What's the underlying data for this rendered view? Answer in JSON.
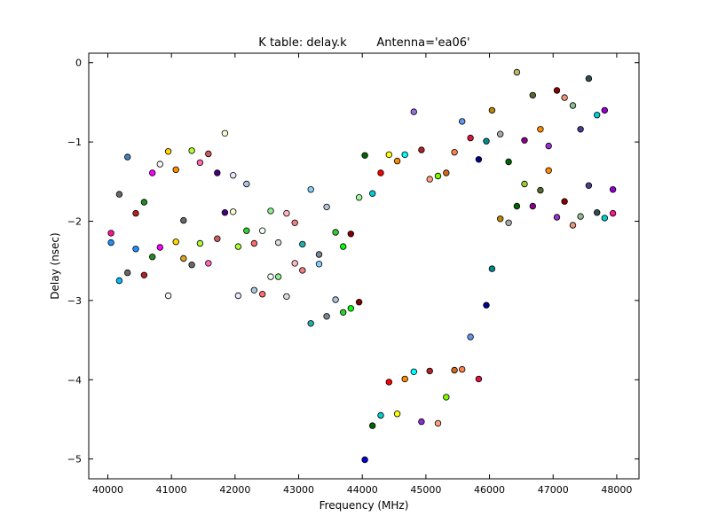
{
  "chart_data": {
    "type": "scatter",
    "title": "K table: delay.k",
    "subtitle": "Antenna='ea06'",
    "xlabel": "Frequency (MHz)",
    "ylabel": "Delay (nsec)",
    "xlim": [
      39700,
      48350
    ],
    "ylim": [
      -5.25,
      0.12
    ],
    "xticks": [
      40000,
      41000,
      42000,
      43000,
      44000,
      45000,
      46000,
      47000,
      48000
    ],
    "yticks": [
      0,
      -1,
      -2,
      -3,
      -4,
      -5
    ],
    "xtick_labels": [
      "40000",
      "41000",
      "42000",
      "43000",
      "44000",
      "45000",
      "46000",
      "47000",
      "48000"
    ],
    "ytick_labels": [
      "0",
      "−1",
      "−2",
      "−3",
      "−4",
      "−5"
    ],
    "grid": false,
    "points": [
      {
        "x": 40050,
        "y": -2.15,
        "color": "#ff1493"
      },
      {
        "x": 40050,
        "y": -2.27,
        "color": "#1e90ff"
      },
      {
        "x": 40180,
        "y": -1.66,
        "color": "#696969"
      },
      {
        "x": 40180,
        "y": -2.75,
        "color": "#00bfff"
      },
      {
        "x": 40310,
        "y": -1.19,
        "color": "#4682b4"
      },
      {
        "x": 40310,
        "y": -2.65,
        "color": "#696969"
      },
      {
        "x": 40440,
        "y": -1.9,
        "color": "#b22222"
      },
      {
        "x": 40440,
        "y": -2.35,
        "color": "#1e90ff"
      },
      {
        "x": 40570,
        "y": -1.76,
        "color": "#228b22"
      },
      {
        "x": 40570,
        "y": -2.68,
        "color": "#b22222"
      },
      {
        "x": 40700,
        "y": -1.39,
        "color": "#ff00ff"
      },
      {
        "x": 40700,
        "y": -2.45,
        "color": "#228b22"
      },
      {
        "x": 40820,
        "y": -1.28,
        "color": "#f5f5f5"
      },
      {
        "x": 40820,
        "y": -2.33,
        "color": "#ff00ff"
      },
      {
        "x": 40950,
        "y": -1.12,
        "color": "#ffd700"
      },
      {
        "x": 40950,
        "y": -2.94,
        "color": "#f5f5f5"
      },
      {
        "x": 41070,
        "y": -1.35,
        "color": "#ff8c00"
      },
      {
        "x": 41070,
        "y": -2.26,
        "color": "#ffd700"
      },
      {
        "x": 41190,
        "y": -1.99,
        "color": "#696969"
      },
      {
        "x": 41190,
        "y": -2.47,
        "color": "#daa520"
      },
      {
        "x": 41320,
        "y": -1.11,
        "color": "#adff2f"
      },
      {
        "x": 41320,
        "y": -2.55,
        "color": "#696969"
      },
      {
        "x": 41450,
        "y": -1.26,
        "color": "#ff69b4"
      },
      {
        "x": 41450,
        "y": -2.28,
        "color": "#adff2f"
      },
      {
        "x": 41580,
        "y": -1.15,
        "color": "#cd5c5c"
      },
      {
        "x": 41580,
        "y": -2.53,
        "color": "#ff69b4"
      },
      {
        "x": 41720,
        "y": -1.39,
        "color": "#4b0082"
      },
      {
        "x": 41720,
        "y": -2.22,
        "color": "#cd5c5c"
      },
      {
        "x": 41840,
        "y": -0.89,
        "color": "#fafad2"
      },
      {
        "x": 41840,
        "y": -1.89,
        "color": "#4b0082"
      },
      {
        "x": 41970,
        "y": -1.42,
        "color": "#e6e6fa"
      },
      {
        "x": 41970,
        "y": -1.88,
        "color": "#fafad2"
      },
      {
        "x": 42050,
        "y": -2.32,
        "color": "#adff2f"
      },
      {
        "x": 42050,
        "y": -2.94,
        "color": "#e6e6fa"
      },
      {
        "x": 42180,
        "y": -1.53,
        "color": "#b0c4de"
      },
      {
        "x": 42180,
        "y": -2.12,
        "color": "#32cd32"
      },
      {
        "x": 42300,
        "y": -2.28,
        "color": "#ff6b6b"
      },
      {
        "x": 42300,
        "y": -2.87,
        "color": "#b0c4de"
      },
      {
        "x": 42430,
        "y": -2.12,
        "color": "#f0fff0"
      },
      {
        "x": 42430,
        "y": -2.92,
        "color": "#ff6b6b"
      },
      {
        "x": 42560,
        "y": -1.87,
        "color": "#90ee90"
      },
      {
        "x": 42560,
        "y": -2.7,
        "color": "#f0fff0"
      },
      {
        "x": 42680,
        "y": -2.27,
        "color": "#dcdcdc"
      },
      {
        "x": 42680,
        "y": -2.7,
        "color": "#90ee90"
      },
      {
        "x": 42810,
        "y": -1.9,
        "color": "#ffb6c1"
      },
      {
        "x": 42810,
        "y": -2.95,
        "color": "#dcdcdc"
      },
      {
        "x": 42940,
        "y": -2.02,
        "color": "#f08080"
      },
      {
        "x": 42940,
        "y": -2.53,
        "color": "#ffb6c1"
      },
      {
        "x": 43060,
        "y": -2.29,
        "color": "#20b2aa"
      },
      {
        "x": 43060,
        "y": -2.62,
        "color": "#f08080"
      },
      {
        "x": 43190,
        "y": -1.6,
        "color": "#87cefa"
      },
      {
        "x": 43190,
        "y": -3.29,
        "color": "#20b2aa"
      },
      {
        "x": 43320,
        "y": -2.42,
        "color": "#778899"
      },
      {
        "x": 43320,
        "y": -2.54,
        "color": "#87cefa"
      },
      {
        "x": 43440,
        "y": -1.82,
        "color": "#b0c4de"
      },
      {
        "x": 43440,
        "y": -3.2,
        "color": "#778899"
      },
      {
        "x": 43580,
        "y": -2.14,
        "color": "#32cd32"
      },
      {
        "x": 43580,
        "y": -2.99,
        "color": "#b0c4de"
      },
      {
        "x": 43700,
        "y": -2.32,
        "color": "#00ff00"
      },
      {
        "x": 43700,
        "y": -3.15,
        "color": "#32cd32"
      },
      {
        "x": 43820,
        "y": -2.16,
        "color": "#800000"
      },
      {
        "x": 43820,
        "y": -3.1,
        "color": "#00ff00"
      },
      {
        "x": 43950,
        "y": -1.7,
        "color": "#98fb98"
      },
      {
        "x": 43950,
        "y": -3.02,
        "color": "#800000"
      },
      {
        "x": 44040,
        "y": -1.17,
        "color": "#006400"
      },
      {
        "x": 44040,
        "y": -5.01,
        "color": "#0000cd"
      },
      {
        "x": 44160,
        "y": -1.65,
        "color": "#00ced1"
      },
      {
        "x": 44160,
        "y": -4.58,
        "color": "#006400"
      },
      {
        "x": 44290,
        "y": -1.39,
        "color": "#ff0000"
      },
      {
        "x": 44290,
        "y": -4.45,
        "color": "#00ced1"
      },
      {
        "x": 44420,
        "y": -1.16,
        "color": "#ffff00"
      },
      {
        "x": 44420,
        "y": -4.03,
        "color": "#ff0000"
      },
      {
        "x": 44550,
        "y": -1.24,
        "color": "#ff8c00"
      },
      {
        "x": 44550,
        "y": -4.43,
        "color": "#ffff00"
      },
      {
        "x": 44670,
        "y": -1.16,
        "color": "#00ffff"
      },
      {
        "x": 44670,
        "y": -3.99,
        "color": "#ff8c00"
      },
      {
        "x": 44810,
        "y": -0.62,
        "color": "#9370db"
      },
      {
        "x": 44810,
        "y": -3.9,
        "color": "#00ffff"
      },
      {
        "x": 44930,
        "y": -1.1,
        "color": "#b22222"
      },
      {
        "x": 44930,
        "y": -4.53,
        "color": "#8a2be2"
      },
      {
        "x": 45060,
        "y": -1.47,
        "color": "#ffa07a"
      },
      {
        "x": 45060,
        "y": -3.89,
        "color": "#b22222"
      },
      {
        "x": 45190,
        "y": -1.43,
        "color": "#7cfc00"
      },
      {
        "x": 45190,
        "y": -4.55,
        "color": "#ffa07a"
      },
      {
        "x": 45320,
        "y": -1.39,
        "color": "#d2691e"
      },
      {
        "x": 45320,
        "y": -4.22,
        "color": "#7cfc00"
      },
      {
        "x": 45450,
        "y": -1.13,
        "color": "#ff7f50"
      },
      {
        "x": 45450,
        "y": -3.88,
        "color": "#d2691e"
      },
      {
        "x": 45570,
        "y": -0.74,
        "color": "#6495ed"
      },
      {
        "x": 45570,
        "y": -3.87,
        "color": "#ff7f50"
      },
      {
        "x": 45700,
        "y": -0.95,
        "color": "#dc143c"
      },
      {
        "x": 45700,
        "y": -3.46,
        "color": "#6495ed"
      },
      {
        "x": 45830,
        "y": -1.22,
        "color": "#00008b"
      },
      {
        "x": 45830,
        "y": -3.99,
        "color": "#dc143c"
      },
      {
        "x": 45950,
        "y": -0.99,
        "color": "#008b8b"
      },
      {
        "x": 45950,
        "y": -3.06,
        "color": "#00008b"
      },
      {
        "x": 46040,
        "y": -0.6,
        "color": "#b8860b"
      },
      {
        "x": 46040,
        "y": -2.6,
        "color": "#008b8b"
      },
      {
        "x": 46170,
        "y": -0.9,
        "color": "#a9a9a9"
      },
      {
        "x": 46170,
        "y": -1.97,
        "color": "#b8860b"
      },
      {
        "x": 46300,
        "y": -1.25,
        "color": "#006400"
      },
      {
        "x": 46300,
        "y": -2.02,
        "color": "#a9a9a9"
      },
      {
        "x": 46430,
        "y": -0.12,
        "color": "#bdb76b"
      },
      {
        "x": 46430,
        "y": -1.81,
        "color": "#006400"
      },
      {
        "x": 46550,
        "y": -0.98,
        "color": "#8b008b"
      },
      {
        "x": 46550,
        "y": -1.53,
        "color": "#9acd32"
      },
      {
        "x": 46680,
        "y": -0.41,
        "color": "#556b2f"
      },
      {
        "x": 46680,
        "y": -1.81,
        "color": "#8b008b"
      },
      {
        "x": 46800,
        "y": -0.84,
        "color": "#ff8c00"
      },
      {
        "x": 46800,
        "y": -1.61,
        "color": "#556b2f"
      },
      {
        "x": 46930,
        "y": -1.05,
        "color": "#9932cc"
      },
      {
        "x": 46930,
        "y": -1.36,
        "color": "#ff8c00"
      },
      {
        "x": 47060,
        "y": -0.35,
        "color": "#8b0000"
      },
      {
        "x": 47060,
        "y": -1.95,
        "color": "#9932cc"
      },
      {
        "x": 47180,
        "y": -0.44,
        "color": "#e9967a"
      },
      {
        "x": 47180,
        "y": -1.75,
        "color": "#8b0000"
      },
      {
        "x": 47310,
        "y": -0.54,
        "color": "#8fbc8f"
      },
      {
        "x": 47310,
        "y": -2.05,
        "color": "#e9967a"
      },
      {
        "x": 47430,
        "y": -0.84,
        "color": "#483d8b"
      },
      {
        "x": 47430,
        "y": -1.94,
        "color": "#8fbc8f"
      },
      {
        "x": 47560,
        "y": -0.2,
        "color": "#2f4f4f"
      },
      {
        "x": 47560,
        "y": -1.55,
        "color": "#483d8b"
      },
      {
        "x": 47690,
        "y": -0.66,
        "color": "#00ced1"
      },
      {
        "x": 47690,
        "y": -1.89,
        "color": "#2f4f4f"
      },
      {
        "x": 47810,
        "y": -0.6,
        "color": "#9400d3"
      },
      {
        "x": 47810,
        "y": -1.96,
        "color": "#00ced1"
      },
      {
        "x": 47940,
        "y": -1.6,
        "color": "#9400d3"
      },
      {
        "x": 47940,
        "y": -1.9,
        "color": "#ff1493"
      }
    ]
  }
}
